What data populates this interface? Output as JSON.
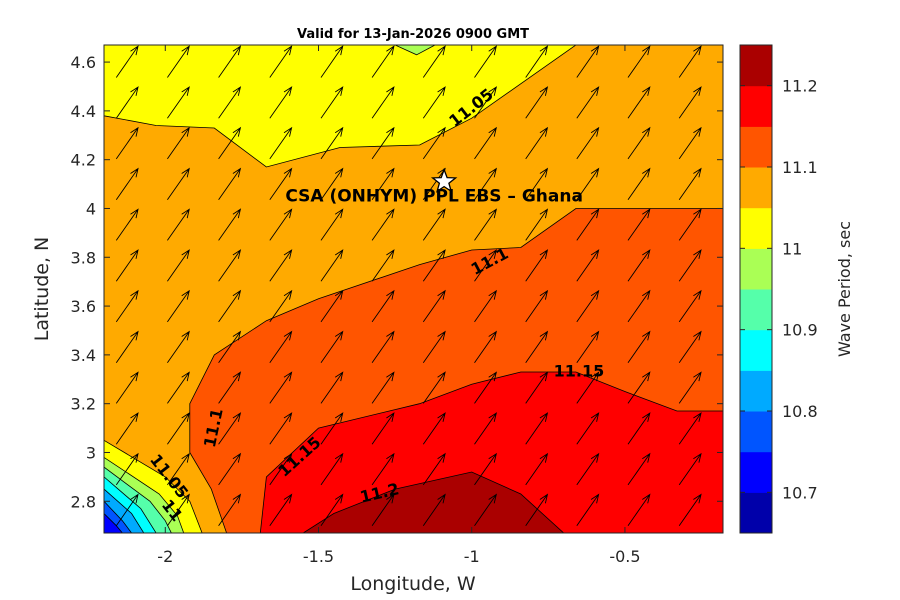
{
  "chart_data": {
    "type": "contour",
    "title": "Valid for 13-Jan-2026 0900 GMT",
    "xlabel": "Longitude, W",
    "ylabel": "Latitude, N",
    "xlim": [
      -2.2,
      -0.18
    ],
    "ylim": [
      2.67,
      4.67
    ],
    "x_ticks": [
      -2,
      -1.5,
      -1,
      -0.5
    ],
    "x_tick_labels": [
      "-2",
      "-1.5",
      "-1",
      "-0.5"
    ],
    "y_ticks": [
      2.8,
      3,
      3.2,
      3.4,
      3.6,
      3.8,
      4,
      4.2,
      4.4,
      4.6
    ],
    "y_tick_labels": [
      "2.8",
      "3",
      "3.2",
      "3.4",
      "3.6",
      "3.8",
      "4",
      "4.2",
      "4.4",
      "4.6"
    ],
    "colorbar": {
      "label": "Wave Period, sec",
      "range": [
        10.65,
        11.25
      ],
      "ticks": [
        10.7,
        10.8,
        10.9,
        11,
        11.1,
        11.2
      ],
      "tick_labels": [
        "10.7",
        "10.8",
        "10.9",
        "11",
        "11.1",
        "11.2"
      ],
      "levels": [
        10.65,
        10.7,
        10.75,
        10.8,
        10.85,
        10.9,
        10.95,
        11.0,
        11.05,
        11.1,
        11.15,
        11.2,
        11.25
      ],
      "colors": [
        "#0000aa",
        "#0000ff",
        "#0055ff",
        "#00aaff",
        "#00ffff",
        "#55ffaa",
        "#aaff55",
        "#ffff00",
        "#ffaa00",
        "#ff5500",
        "#ff0000",
        "#aa0000"
      ]
    },
    "contour_bands": [
      {
        "lower": 11.05,
        "upper": 11.1,
        "color": "#ffaa00",
        "points": [
          [
            -2.2,
            4.67
          ],
          [
            -0.18,
            4.67
          ],
          [
            -0.18,
            2.67
          ],
          [
            -2.2,
            2.67
          ]
        ]
      },
      {
        "lower": 11.0,
        "upper": 11.05,
        "color": "#ffff00",
        "points": [
          [
            -2.2,
            4.67
          ],
          [
            -0.66,
            4.67
          ],
          [
            -1.0,
            4.37
          ],
          [
            -1.17,
            4.26
          ],
          [
            -1.43,
            4.25
          ],
          [
            -1.67,
            4.17
          ],
          [
            -1.84,
            4.33
          ],
          [
            -2.03,
            4.34
          ],
          [
            -2.2,
            4.38
          ]
        ]
      },
      {
        "lower": 11.1,
        "upper": 11.15,
        "color": "#ff5500",
        "points": [
          [
            -0.18,
            4.0
          ],
          [
            -0.66,
            4.0
          ],
          [
            -0.84,
            3.84
          ],
          [
            -1.0,
            3.83
          ],
          [
            -1.17,
            3.77
          ],
          [
            -1.5,
            3.63
          ],
          [
            -1.67,
            3.54
          ],
          [
            -1.84,
            3.4
          ],
          [
            -1.92,
            3.2
          ],
          [
            -1.92,
            3.0
          ],
          [
            -1.85,
            2.85
          ],
          [
            -1.8,
            2.67
          ],
          [
            -0.18,
            2.67
          ]
        ]
      },
      {
        "lower": 11.15,
        "upper": 11.2,
        "color": "#ff0000",
        "points": [
          [
            -0.18,
            3.17
          ],
          [
            -0.33,
            3.17
          ],
          [
            -0.5,
            3.25
          ],
          [
            -0.66,
            3.33
          ],
          [
            -0.84,
            3.33
          ],
          [
            -1.0,
            3.28
          ],
          [
            -1.17,
            3.2
          ],
          [
            -1.5,
            3.1
          ],
          [
            -1.67,
            2.9
          ],
          [
            -1.69,
            2.67
          ],
          [
            -0.18,
            2.67
          ]
        ]
      },
      {
        "lower": 11.2,
        "upper": 11.25,
        "color": "#aa0000",
        "points": [
          [
            -1.55,
            2.67
          ],
          [
            -1.45,
            2.75
          ],
          [
            -1.25,
            2.85
          ],
          [
            -1.0,
            2.92
          ],
          [
            -0.84,
            2.83
          ],
          [
            -0.7,
            2.67
          ]
        ]
      },
      {
        "lower": 10.95,
        "upper": 11.0,
        "color": "#aaff55",
        "points": [
          [
            -1.25,
            4.67
          ],
          [
            -1.18,
            4.63
          ],
          [
            -1.12,
            4.67
          ]
        ]
      },
      {
        "lower": 11.0,
        "upper": 11.05,
        "color": "#ffff00",
        "points": [
          [
            -2.2,
            3.05
          ],
          [
            -2.0,
            2.9
          ],
          [
            -1.92,
            2.8
          ],
          [
            -1.88,
            2.67
          ],
          [
            -2.2,
            2.67
          ]
        ]
      },
      {
        "lower": 10.95,
        "upper": 11.0,
        "color": "#aaff55",
        "points": [
          [
            -2.2,
            2.98
          ],
          [
            -2.02,
            2.83
          ],
          [
            -1.96,
            2.74
          ],
          [
            -1.94,
            2.67
          ],
          [
            -2.2,
            2.67
          ]
        ]
      },
      {
        "lower": 10.9,
        "upper": 10.95,
        "color": "#55ffaa",
        "points": [
          [
            -2.2,
            2.94
          ],
          [
            -2.05,
            2.8
          ],
          [
            -2.0,
            2.72
          ],
          [
            -1.98,
            2.67
          ],
          [
            -2.2,
            2.67
          ]
        ]
      },
      {
        "lower": 10.85,
        "upper": 10.9,
        "color": "#00ffff",
        "points": [
          [
            -2.2,
            2.9
          ],
          [
            -2.08,
            2.77
          ],
          [
            -2.03,
            2.67
          ],
          [
            -2.2,
            2.67
          ]
        ]
      },
      {
        "lower": 10.8,
        "upper": 10.85,
        "color": "#00aaff",
        "points": [
          [
            -2.2,
            2.85
          ],
          [
            -2.11,
            2.75
          ],
          [
            -2.07,
            2.67
          ],
          [
            -2.2,
            2.67
          ]
        ]
      },
      {
        "lower": 10.75,
        "upper": 10.8,
        "color": "#0055ff",
        "points": [
          [
            -2.2,
            2.8
          ],
          [
            -2.14,
            2.72
          ],
          [
            -2.11,
            2.67
          ],
          [
            -2.2,
            2.67
          ]
        ]
      },
      {
        "lower": 10.7,
        "upper": 10.75,
        "color": "#0000ff",
        "points": [
          [
            -2.2,
            2.75
          ],
          [
            -2.16,
            2.7
          ],
          [
            -2.14,
            2.67
          ],
          [
            -2.2,
            2.67
          ]
        ]
      }
    ],
    "contour_labels": [
      {
        "text": "11.05",
        "x": -1.0,
        "y": 4.41,
        "angle": -38
      },
      {
        "text": "11.1",
        "x": -0.94,
        "y": 3.78,
        "angle": -28
      },
      {
        "text": "11.15",
        "x": -0.65,
        "y": 3.33,
        "angle": 0
      },
      {
        "text": "11.1",
        "x": -1.84,
        "y": 3.1,
        "angle": -78
      },
      {
        "text": "11.15",
        "x": -1.56,
        "y": 2.98,
        "angle": -42
      },
      {
        "text": "11.2",
        "x": -1.3,
        "y": 2.83,
        "angle": -13
      },
      {
        "text": "11.05",
        "x": -1.99,
        "y": 2.9,
        "angle": 52
      },
      {
        "text": "11",
        "x": -1.98,
        "y": 2.76,
        "angle": 52
      }
    ],
    "vector_field": {
      "description_free": true,
      "x_start": -2.16,
      "x_step": 0.167,
      "x_count": 13,
      "y_start": 2.7,
      "y_step": 0.167,
      "y_count": 12,
      "u": 0.7,
      "v": 1.0
    },
    "site": {
      "label": "CSA (ONHYM) PPL EBS  – Ghana",
      "x": -1.09,
      "y": 4.11
    }
  }
}
